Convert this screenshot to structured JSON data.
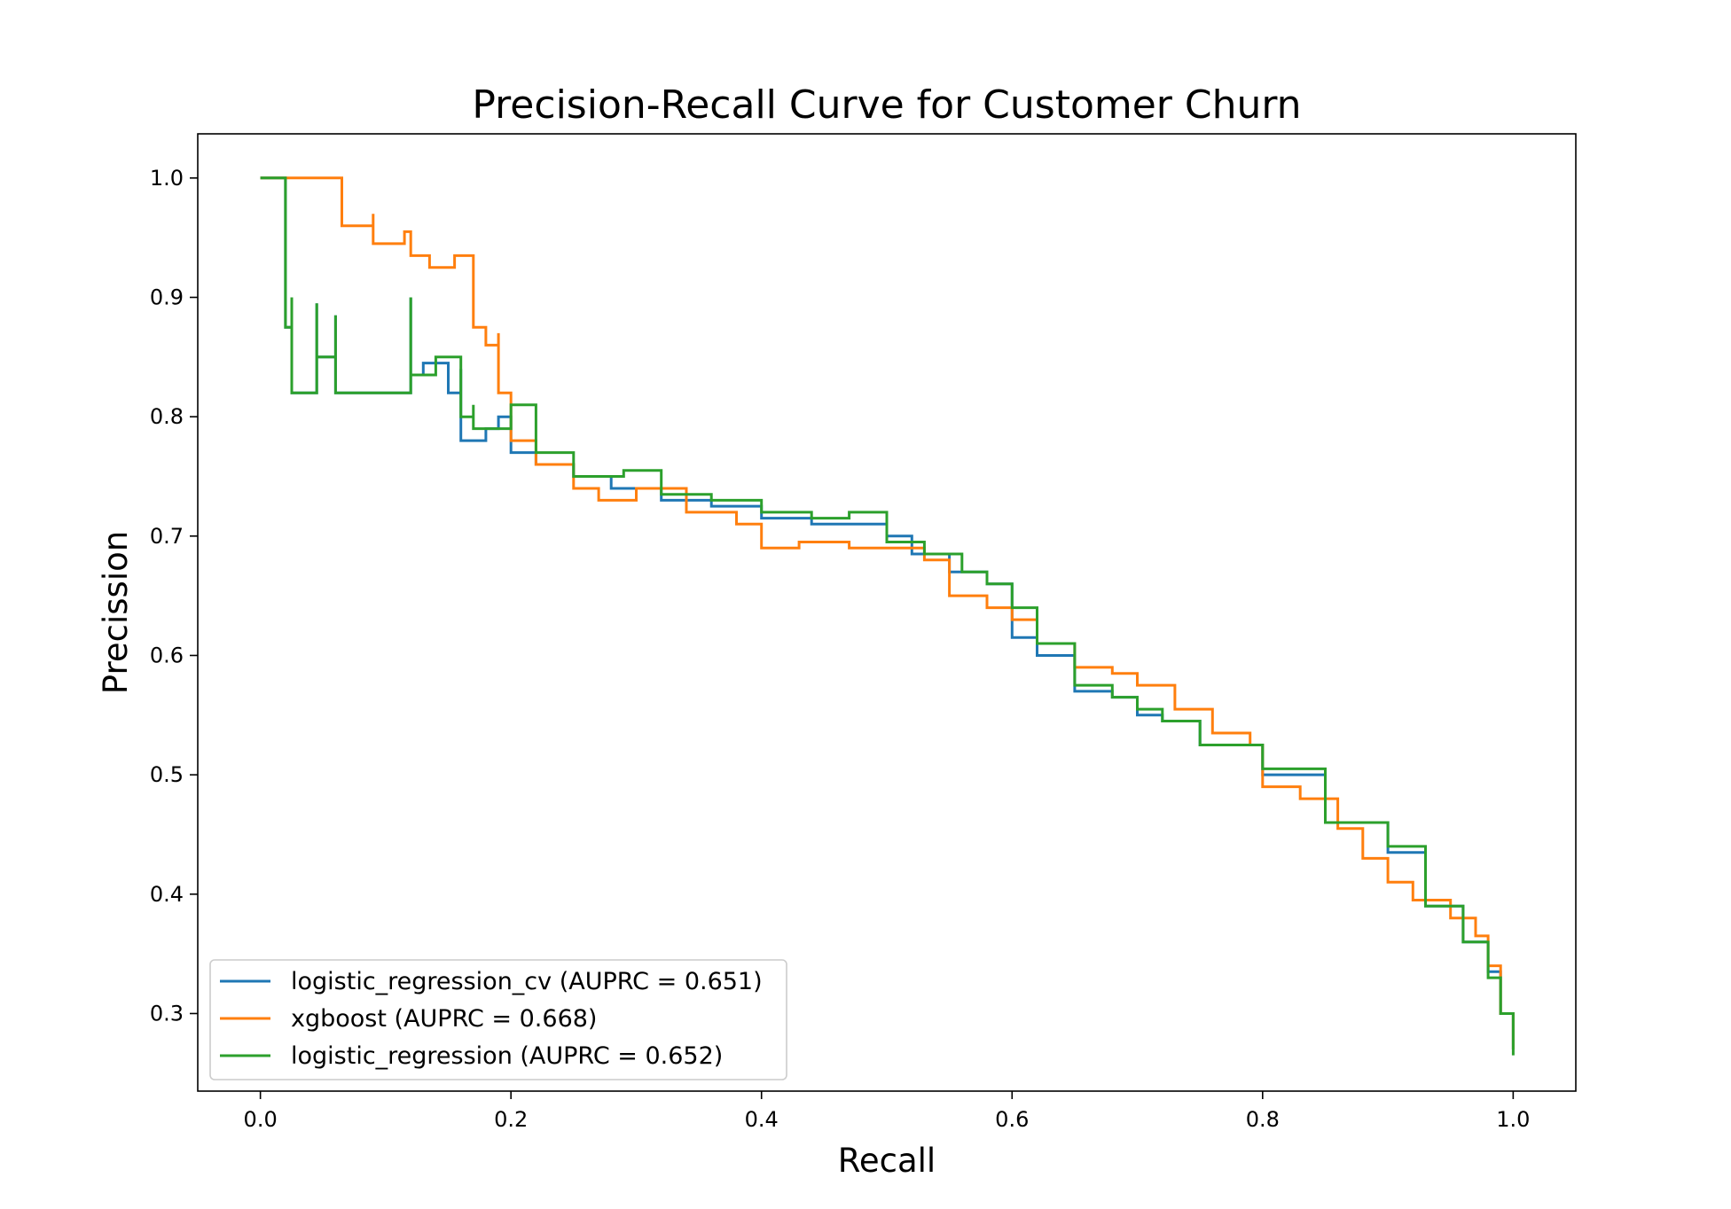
{
  "chart_data": {
    "type": "line",
    "title": "Precision-Recall Curve for Customer Churn",
    "xlabel": "Recall",
    "ylabel": "Precission",
    "xlim": [
      -0.05,
      1.05
    ],
    "ylim": [
      0.235,
      1.037
    ],
    "xticks": [
      0.0,
      0.2,
      0.4,
      0.6,
      0.8,
      1.0
    ],
    "xtick_labels": [
      "0.0",
      "0.2",
      "0.4",
      "0.6",
      "0.8",
      "1.0"
    ],
    "yticks": [
      0.3,
      0.4,
      0.5,
      0.6,
      0.7,
      0.8,
      0.9,
      1.0
    ],
    "ytick_labels": [
      "0.3",
      "0.4",
      "0.5",
      "0.6",
      "0.7",
      "0.8",
      "0.9",
      "1.0"
    ],
    "grid": false,
    "legend_position": "lower-left",
    "series": [
      {
        "name": "logistic_regression_cv (AUPRC = 0.651)",
        "color": "#1f77b4",
        "x": [
          0.0,
          0.02,
          0.02,
          0.025,
          0.025,
          0.045,
          0.045,
          0.06,
          0.06,
          0.12,
          0.12,
          0.13,
          0.15,
          0.16,
          0.16,
          0.18,
          0.19,
          0.2,
          0.22,
          0.25,
          0.28,
          0.32,
          0.36,
          0.4,
          0.44,
          0.48,
          0.5,
          0.52,
          0.55,
          0.58,
          0.6,
          0.62,
          0.65,
          0.68,
          0.7,
          0.72,
          0.75,
          0.8,
          0.85,
          0.9,
          0.93,
          0.96,
          0.98,
          0.99,
          1.0
        ],
        "y": [
          1.0,
          1.0,
          0.875,
          0.9,
          0.82,
          0.895,
          0.85,
          0.885,
          0.82,
          0.9,
          0.835,
          0.845,
          0.82,
          0.84,
          0.78,
          0.79,
          0.8,
          0.77,
          0.76,
          0.75,
          0.74,
          0.73,
          0.725,
          0.715,
          0.71,
          0.71,
          0.7,
          0.685,
          0.67,
          0.66,
          0.615,
          0.6,
          0.57,
          0.565,
          0.55,
          0.545,
          0.525,
          0.5,
          0.46,
          0.435,
          0.39,
          0.36,
          0.335,
          0.3,
          0.27
        ]
      },
      {
        "name": "xgboost (AUPRC = 0.668)",
        "color": "#ff7f0e",
        "x": [
          0.0,
          0.065,
          0.065,
          0.09,
          0.09,
          0.115,
          0.12,
          0.135,
          0.155,
          0.17,
          0.17,
          0.18,
          0.19,
          0.19,
          0.2,
          0.22,
          0.25,
          0.27,
          0.3,
          0.34,
          0.38,
          0.4,
          0.43,
          0.47,
          0.5,
          0.53,
          0.55,
          0.58,
          0.6,
          0.62,
          0.65,
          0.68,
          0.7,
          0.73,
          0.76,
          0.79,
          0.8,
          0.83,
          0.86,
          0.88,
          0.9,
          0.92,
          0.95,
          0.97,
          0.98,
          0.99,
          1.0
        ],
        "y": [
          1.0,
          1.0,
          0.96,
          0.97,
          0.945,
          0.955,
          0.935,
          0.925,
          0.935,
          0.915,
          0.875,
          0.86,
          0.87,
          0.82,
          0.78,
          0.76,
          0.74,
          0.73,
          0.74,
          0.72,
          0.71,
          0.69,
          0.695,
          0.69,
          0.69,
          0.68,
          0.65,
          0.64,
          0.63,
          0.61,
          0.59,
          0.585,
          0.575,
          0.555,
          0.535,
          0.525,
          0.49,
          0.48,
          0.455,
          0.43,
          0.41,
          0.395,
          0.38,
          0.365,
          0.34,
          0.3,
          0.27
        ]
      },
      {
        "name": "logistic_regression (AUPRC = 0.652)",
        "color": "#2ca02c",
        "x": [
          0.0,
          0.02,
          0.02,
          0.025,
          0.025,
          0.045,
          0.045,
          0.06,
          0.06,
          0.12,
          0.12,
          0.14,
          0.16,
          0.17,
          0.17,
          0.2,
          0.22,
          0.25,
          0.29,
          0.32,
          0.36,
          0.4,
          0.44,
          0.47,
          0.5,
          0.53,
          0.56,
          0.58,
          0.6,
          0.62,
          0.65,
          0.68,
          0.7,
          0.72,
          0.75,
          0.8,
          0.85,
          0.9,
          0.93,
          0.96,
          0.98,
          0.99,
          1.0
        ],
        "y": [
          1.0,
          1.0,
          0.875,
          0.9,
          0.82,
          0.895,
          0.85,
          0.885,
          0.82,
          0.9,
          0.835,
          0.85,
          0.8,
          0.81,
          0.79,
          0.81,
          0.77,
          0.75,
          0.755,
          0.735,
          0.73,
          0.72,
          0.715,
          0.72,
          0.695,
          0.685,
          0.67,
          0.66,
          0.64,
          0.61,
          0.575,
          0.565,
          0.555,
          0.545,
          0.525,
          0.505,
          0.46,
          0.44,
          0.39,
          0.36,
          0.33,
          0.3,
          0.265
        ]
      }
    ]
  }
}
